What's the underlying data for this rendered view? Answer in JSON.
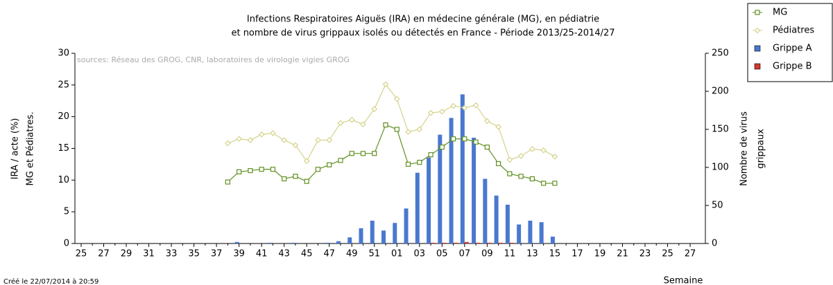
{
  "chart_data": {
    "type": "bar_line",
    "title": [
      "Infections Respiratoires Aiguës (IRA) en médecine générale (MG), en pédiatrie",
      "et nombre de virus grippaux isolés ou détectés en France - Période 2013/25-2014/27"
    ],
    "annotation": "sources: Réseau des GROG, CNR, laboratoires de virologie vigies GROG",
    "footer": "Créé le 22/07/2014 à 20:59",
    "xlabel": "Semaine",
    "ylabel": [
      "IRA / acte (%)",
      "MG et Pédiatres."
    ],
    "y2label": [
      "Nombre de virus",
      "grippaux"
    ],
    "categories": [
      "25",
      null,
      "27",
      null,
      "29",
      null,
      "31",
      null,
      "33",
      null,
      "35",
      null,
      "37",
      null,
      "39",
      null,
      "41",
      null,
      "43",
      null,
      "45",
      null,
      "47",
      null,
      "49",
      null,
      "51",
      null,
      "01",
      null,
      "03",
      null,
      "05",
      null,
      "07",
      null,
      "09",
      null,
      "11",
      null,
      "13",
      null,
      "15",
      null,
      "17",
      null,
      "19",
      null,
      "21",
      null,
      "23",
      null,
      "25",
      null,
      "27"
    ],
    "ylim": [
      0,
      30
    ],
    "yticks": [
      0,
      5,
      10,
      15,
      20,
      25,
      30
    ],
    "y2lim": [
      0,
      250
    ],
    "y2ticks": [
      0,
      50,
      100,
      150,
      200,
      250
    ],
    "legend": "top-right",
    "series": [
      {
        "name": "MG",
        "type": "line",
        "marker": "square",
        "color": "#5f8f1f",
        "axis": "y",
        "values": [
          null,
          null,
          null,
          null,
          null,
          null,
          null,
          null,
          null,
          null,
          null,
          null,
          null,
          9.7,
          11.3,
          11.5,
          11.7,
          11.7,
          10.2,
          10.6,
          9.8,
          11.7,
          12.4,
          13.1,
          14.2,
          14.2,
          14.2,
          18.7,
          18.0,
          12.5,
          12.8,
          14.0,
          15.2,
          16.5,
          16.5,
          16.0,
          15.2,
          12.6,
          11.0,
          10.6,
          10.2,
          9.5,
          9.5,
          null,
          null,
          null,
          null,
          null,
          null,
          null,
          null,
          null,
          null,
          null,
          null
        ]
      },
      {
        "name": "Pédiatres",
        "type": "line",
        "marker": "diamond",
        "color": "#d6d28a",
        "axis": "y",
        "values": [
          null,
          null,
          null,
          null,
          null,
          null,
          null,
          null,
          null,
          null,
          null,
          null,
          null,
          15.8,
          16.5,
          16.3,
          17.2,
          17.4,
          16.3,
          15.5,
          13.0,
          16.3,
          16.3,
          19.0,
          19.5,
          18.8,
          21.2,
          25.1,
          22.8,
          17.6,
          18.0,
          20.6,
          20.8,
          21.7,
          21.4,
          21.8,
          19.3,
          18.4,
          13.2,
          13.8,
          14.9,
          14.7,
          13.7,
          null,
          null,
          null,
          null,
          null,
          null,
          null,
          null,
          null,
          null,
          null,
          null
        ]
      },
      {
        "name": "Grippe A",
        "type": "bar",
        "color": "#4a78cf",
        "axis": "y2",
        "values": [
          0,
          0,
          0,
          0,
          0,
          0,
          0,
          0,
          0,
          0,
          0,
          0,
          0,
          0,
          2,
          0,
          0,
          1,
          0,
          1,
          0,
          0,
          1,
          3,
          8,
          20,
          30,
          17,
          27,
          46,
          93,
          113,
          143,
          165,
          196,
          139,
          85,
          63,
          51,
          25,
          30,
          28,
          9,
          0,
          0,
          0,
          0,
          0,
          0,
          0,
          0,
          0,
          0,
          0,
          0
        ]
      },
      {
        "name": "Grippe B",
        "type": "bar",
        "color": "#d03a32",
        "axis": "y2",
        "values": [
          0,
          0,
          0,
          0,
          0,
          0,
          0,
          0,
          0,
          0,
          0,
          0,
          0,
          0,
          0,
          0,
          0,
          0,
          0,
          0,
          0,
          0,
          0,
          0,
          0,
          0,
          0,
          0,
          0,
          0,
          0,
          1,
          1,
          1,
          2,
          1,
          1,
          1,
          1,
          0,
          0,
          0,
          0,
          0,
          0,
          0,
          0,
          0,
          0,
          0,
          0,
          0,
          0,
          0,
          0
        ]
      }
    ]
  }
}
